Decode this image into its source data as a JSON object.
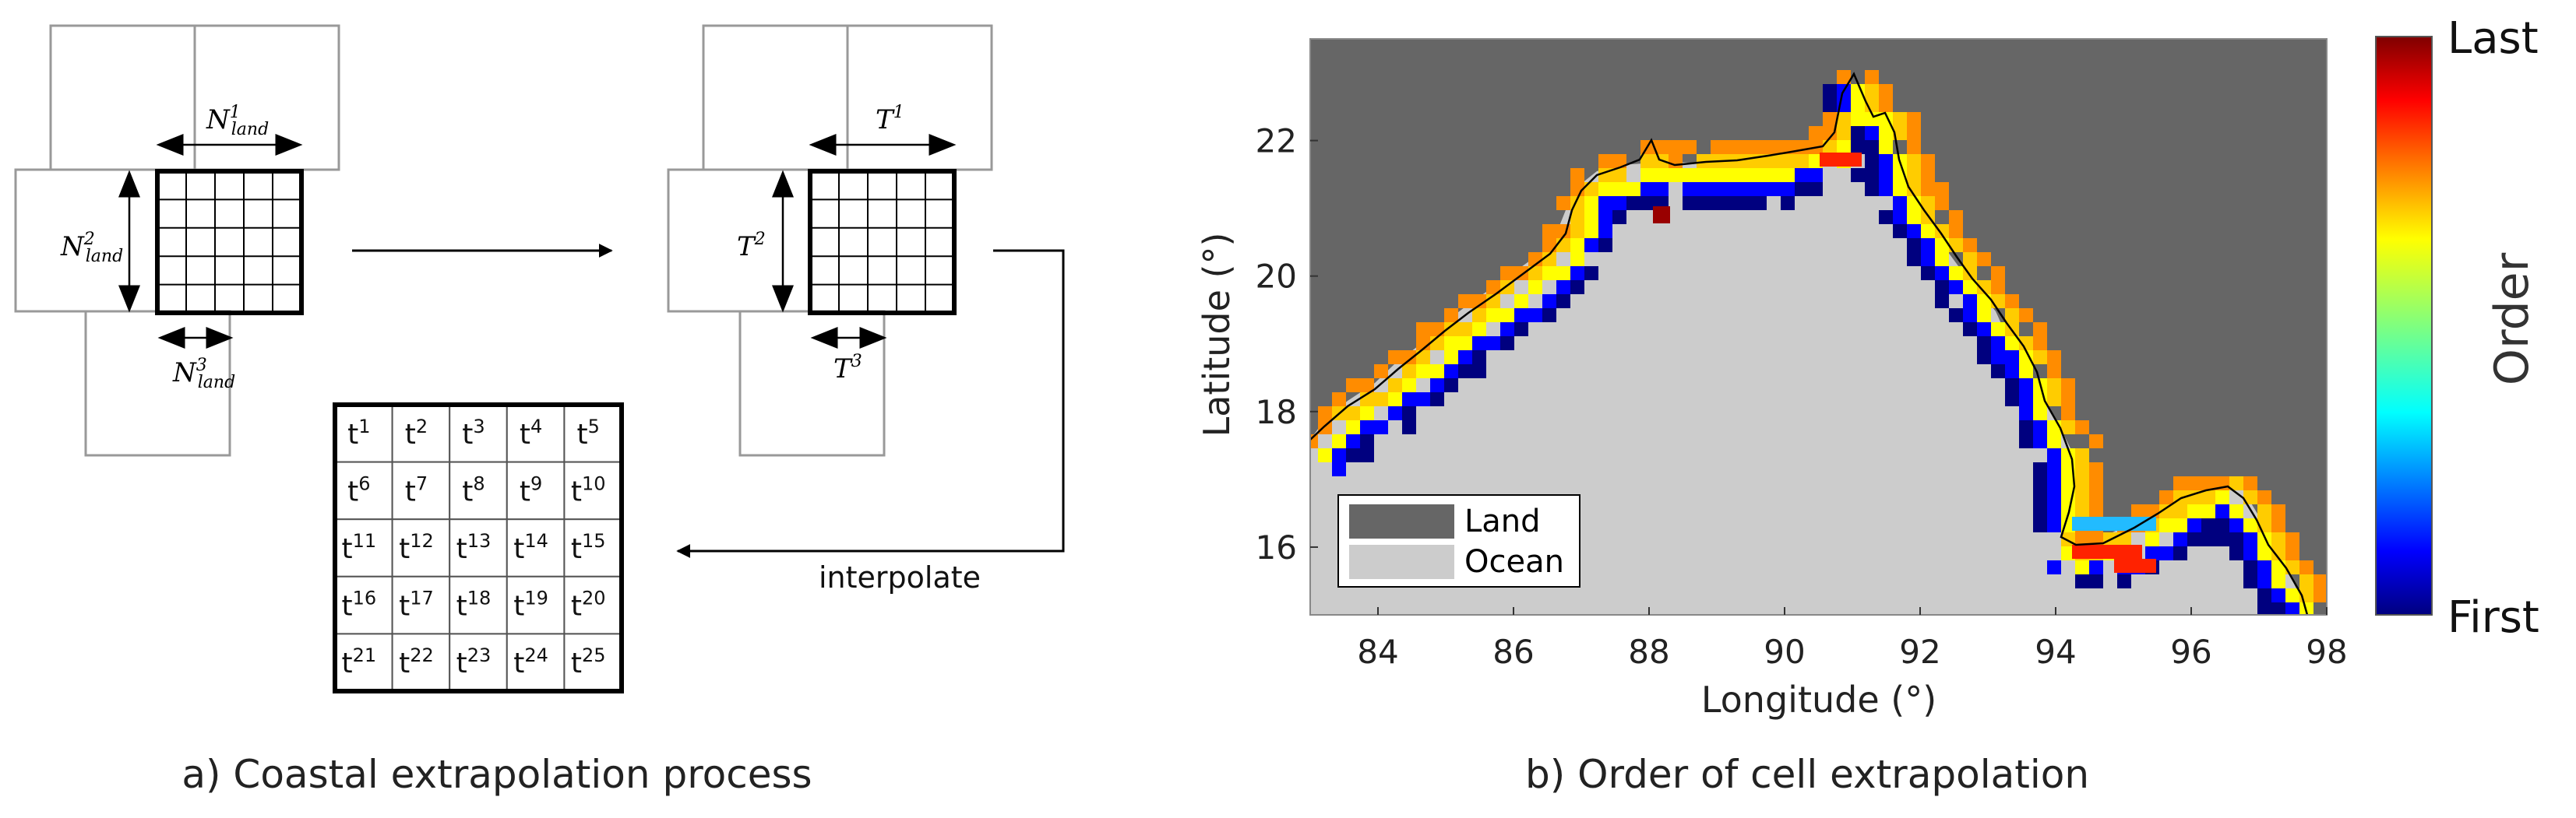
{
  "panel_a": {
    "caption": "a) Coastal extrapolation process",
    "n_label_1": {
      "base": "N",
      "sup": "1",
      "sub": "land"
    },
    "n_label_2": {
      "base": "N",
      "sup": "2",
      "sub": "land"
    },
    "n_label_3": {
      "base": "N",
      "sup": "3",
      "sub": "land"
    },
    "t_label_1": {
      "base": "T",
      "sup": "1"
    },
    "t_label_2": {
      "base": "T",
      "sup": "2"
    },
    "t_label_3": {
      "base": "T",
      "sup": "3"
    },
    "interpolate_label": "interpolate",
    "result_grid": [
      [
        "1",
        "2",
        "3",
        "4",
        "5"
      ],
      [
        "6",
        "7",
        "8",
        "9",
        "10"
      ],
      [
        "11",
        "12",
        "13",
        "14",
        "15"
      ],
      [
        "16",
        "17",
        "18",
        "19",
        "20"
      ],
      [
        "21",
        "22",
        "23",
        "24",
        "25"
      ]
    ],
    "result_base": "t"
  },
  "panel_b": {
    "caption": "b) Order of cell extrapolation",
    "chart_data": {
      "type": "heatmap",
      "xlabel": "Longitude (°)",
      "ylabel": "Latitude (°)",
      "xlim": [
        83,
        98
      ],
      "ylim": [
        15,
        23.5
      ],
      "xticks": [
        "84",
        "86",
        "88",
        "90",
        "92",
        "94",
        "96",
        "98"
      ],
      "yticks": [
        "16",
        "18",
        "20",
        "22"
      ],
      "colorbar": {
        "label": "Order",
        "top_label": "Last",
        "bottom_label": "First"
      },
      "legend": {
        "placement": "bottom-left",
        "entries": [
          {
            "label": "Land",
            "color": "#666666"
          },
          {
            "label": "Ocean",
            "color": "#cccccc"
          }
        ]
      }
    }
  }
}
